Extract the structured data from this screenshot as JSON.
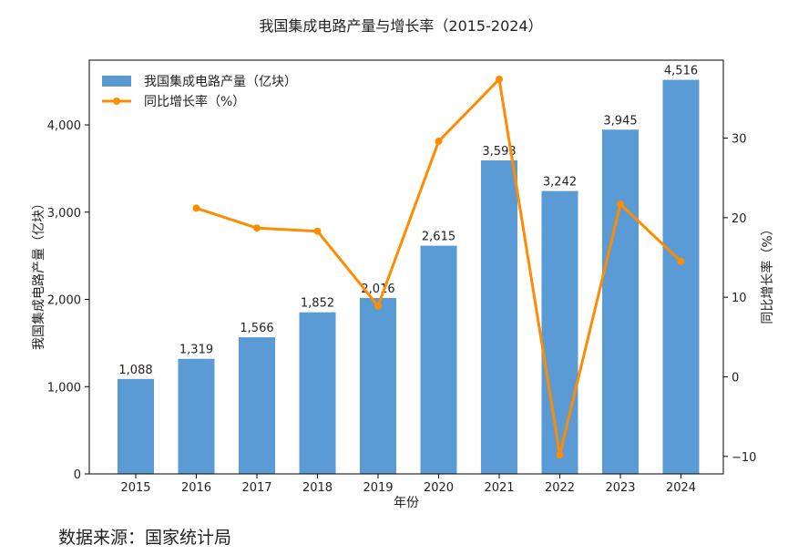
{
  "chart_data": {
    "type": "bar+line",
    "title": "我国集成电路产量与增长率（2015-2024）",
    "xlabel": "年份",
    "ylabel_left": "我国集成电路产量（亿块）",
    "ylabel_right": "同比增长率（%）",
    "categories": [
      "2015",
      "2016",
      "2017",
      "2018",
      "2019",
      "2020",
      "2021",
      "2022",
      "2023",
      "2024"
    ],
    "bar_series": {
      "name": "我国集成电路产量（亿块）",
      "values": [
        1088,
        1319,
        1566,
        1852,
        2016,
        2615,
        3593,
        3242,
        3945,
        4516
      ],
      "labels": [
        "1,088",
        "1,319",
        "1,566",
        "1,852",
        "2,016",
        "2,615",
        "3,593",
        "3,242",
        "3,945",
        "4,516"
      ],
      "color": "#5b9bd5"
    },
    "line_series": {
      "name": "同比增长率（%）",
      "values": [
        null,
        21.2,
        18.7,
        18.3,
        8.9,
        29.6,
        37.4,
        -9.8,
        21.7,
        14.5
      ],
      "color": "#ff8c00"
    },
    "left_axis": {
      "ylim": [
        0,
        4741.8
      ],
      "ticks": [
        0,
        1000,
        2000,
        3000,
        4000
      ],
      "tick_labels": [
        "0",
        "1,000",
        "2,000",
        "3,000",
        "4,000"
      ]
    },
    "right_axis": {
      "ylim": [
        -12.2,
        39.8
      ],
      "ticks": [
        -10,
        0,
        10,
        20,
        30
      ],
      "tick_labels": [
        "−10",
        "0",
        "10",
        "20",
        "30"
      ]
    },
    "legend_position": "top-left",
    "grid": false
  },
  "footer": {
    "source_text": "数据来源：国家统计局"
  }
}
